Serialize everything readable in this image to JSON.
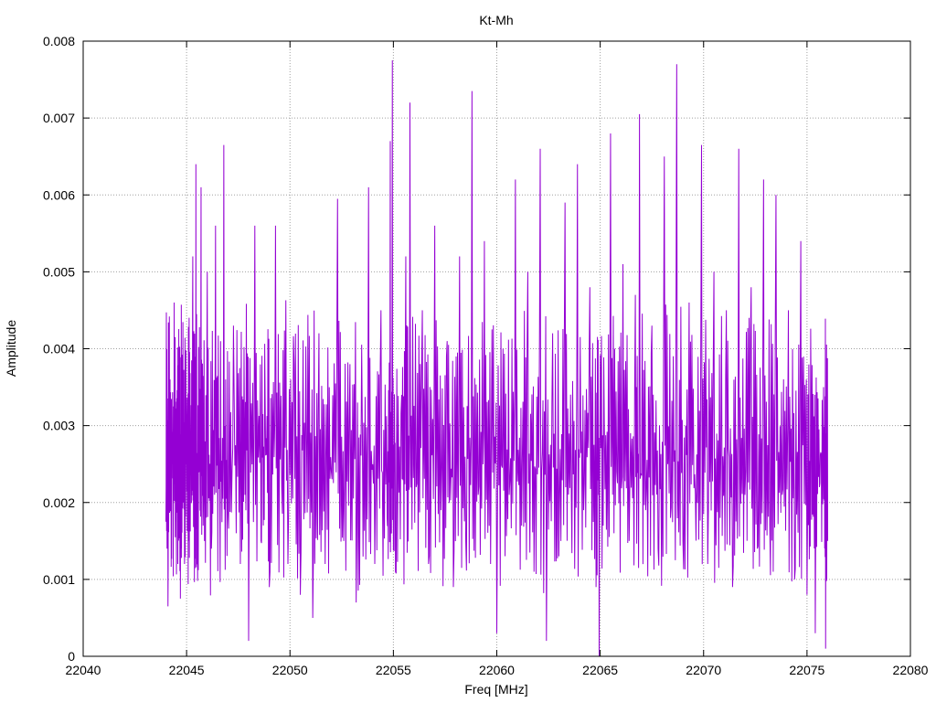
{
  "chart_data": {
    "type": "line",
    "title": "Kt-Mh",
    "xlabel": "Freq [MHz]",
    "ylabel": "Amplitude",
    "xlim": [
      22040,
      22080
    ],
    "ylim": [
      0,
      0.008
    ],
    "x_ticks": [
      "22040",
      "22045",
      "22050",
      "22055",
      "22060",
      "22065",
      "22070",
      "22075",
      "22080"
    ],
    "y_ticks": [
      "0",
      "0.001",
      "0.002",
      "0.003",
      "0.004",
      "0.005",
      "0.006",
      "0.007",
      "0.008"
    ],
    "grid": true,
    "legend": "none",
    "series": [
      {
        "color": "#9400d3",
        "x_start": 22044.0,
        "x_end": 22076.0,
        "points": [
          [
            22044.0,
            0.00175
          ],
          [
            22044.1,
            0.00065
          ],
          [
            22044.2,
            0.0036
          ],
          [
            22044.3,
            0.0025
          ],
          [
            22044.4,
            0.0046
          ],
          [
            22044.5,
            0.0019
          ],
          [
            22044.6,
            0.0033
          ],
          [
            22044.7,
            0.00075
          ],
          [
            22044.8,
            0.0039
          ],
          [
            22044.9,
            0.0012
          ],
          [
            22045.0,
            0.0031
          ],
          [
            22045.1,
            0.0015
          ],
          [
            22045.2,
            0.0029
          ],
          [
            22045.3,
            0.0052
          ],
          [
            22045.4,
            0.0021
          ],
          [
            22045.45,
            0.0064
          ],
          [
            22045.6,
            0.0024
          ],
          [
            22045.7,
            0.0061
          ],
          [
            22045.8,
            0.0017
          ],
          [
            22046.0,
            0.005
          ],
          [
            22046.2,
            0.0014
          ],
          [
            22046.4,
            0.0056
          ],
          [
            22046.6,
            0.0022
          ],
          [
            22046.8,
            0.00665
          ],
          [
            22047.0,
            0.0019
          ],
          [
            22047.3,
            0.0034
          ],
          [
            22047.6,
            0.0012
          ],
          [
            22047.8,
            0.0029
          ],
          [
            22048.0,
            0.0002
          ],
          [
            22048.3,
            0.0056
          ],
          [
            22048.6,
            0.0015
          ],
          [
            22048.8,
            0.0033
          ],
          [
            22049.0,
            0.0009
          ],
          [
            22049.3,
            0.0056
          ],
          [
            22049.6,
            0.0022
          ],
          [
            22049.9,
            0.0012
          ],
          [
            22050.2,
            0.0038
          ],
          [
            22050.5,
            0.0008
          ],
          [
            22050.8,
            0.0028
          ],
          [
            22051.1,
            0.0005
          ],
          [
            22051.4,
            0.0042
          ],
          [
            22051.7,
            0.0012
          ],
          [
            22052.0,
            0.0024
          ],
          [
            22052.3,
            0.00595
          ],
          [
            22052.6,
            0.0015
          ],
          [
            22052.9,
            0.0038
          ],
          [
            22053.2,
            0.0007
          ],
          [
            22053.5,
            0.0029
          ],
          [
            22053.8,
            0.0061
          ],
          [
            22054.1,
            0.0012
          ],
          [
            22054.4,
            0.0045
          ],
          [
            22054.7,
            0.0018
          ],
          [
            22054.85,
            0.0067
          ],
          [
            22054.95,
            0.00775
          ],
          [
            22055.1,
            0.0011
          ],
          [
            22055.4,
            0.0034
          ],
          [
            22055.6,
            0.0052
          ],
          [
            22055.8,
            0.0072
          ],
          [
            22056.1,
            0.0022
          ],
          [
            22056.4,
            0.0045
          ],
          [
            22056.7,
            0.0012
          ],
          [
            22057.0,
            0.0056
          ],
          [
            22057.3,
            0.0019
          ],
          [
            22057.6,
            0.0041
          ],
          [
            22057.9,
            0.0009
          ],
          [
            22058.2,
            0.0052
          ],
          [
            22058.5,
            0.0015
          ],
          [
            22058.8,
            0.00735
          ],
          [
            22059.1,
            0.0021
          ],
          [
            22059.4,
            0.0054
          ],
          [
            22059.7,
            0.0012
          ],
          [
            22060.0,
            0.0003
          ],
          [
            22060.3,
            0.004
          ],
          [
            22060.6,
            0.0021
          ],
          [
            22060.9,
            0.0062
          ],
          [
            22061.2,
            0.0017
          ],
          [
            22061.5,
            0.005
          ],
          [
            22061.8,
            0.0011
          ],
          [
            22062.1,
            0.0066
          ],
          [
            22062.4,
            0.0002
          ],
          [
            22062.7,
            0.0042
          ],
          [
            22063.0,
            0.0013
          ],
          [
            22063.3,
            0.0059
          ],
          [
            22063.6,
            0.0022
          ],
          [
            22063.9,
            0.0064
          ],
          [
            22064.2,
            0.0019
          ],
          [
            22064.5,
            0.0048
          ],
          [
            22064.8,
            0.0009
          ],
          [
            22064.95,
            0.0
          ],
          [
            22065.2,
            0.003
          ],
          [
            22065.5,
            0.0068
          ],
          [
            22065.8,
            0.0024
          ],
          [
            22066.1,
            0.0051
          ],
          [
            22066.4,
            0.0015
          ],
          [
            22066.7,
            0.0047
          ],
          [
            22066.9,
            0.00705
          ],
          [
            22067.2,
            0.0019
          ],
          [
            22067.5,
            0.0043
          ],
          [
            22067.8,
            0.0014
          ],
          [
            22068.1,
            0.0065
          ],
          [
            22068.4,
            0.0018
          ],
          [
            22068.7,
            0.0077
          ],
          [
            22069.0,
            0.0015
          ],
          [
            22069.3,
            0.0046
          ],
          [
            22069.6,
            0.0021
          ],
          [
            22069.9,
            0.00665
          ],
          [
            22070.2,
            0.0012
          ],
          [
            22070.5,
            0.005
          ],
          [
            22070.8,
            0.0018
          ],
          [
            22071.1,
            0.0045
          ],
          [
            22071.4,
            0.0009
          ],
          [
            22071.7,
            0.0066
          ],
          [
            22072.0,
            0.0021
          ],
          [
            22072.3,
            0.0048
          ],
          [
            22072.6,
            0.0014
          ],
          [
            22072.9,
            0.0062
          ],
          [
            22073.2,
            0.0017
          ],
          [
            22073.5,
            0.006
          ],
          [
            22073.8,
            0.0021
          ],
          [
            22074.1,
            0.0045
          ],
          [
            22074.4,
            0.001
          ],
          [
            22074.7,
            0.0054
          ],
          [
            22075.0,
            0.0008
          ],
          [
            22075.2,
            0.0032
          ],
          [
            22075.4,
            0.0003
          ],
          [
            22075.6,
            0.0022
          ],
          [
            22075.8,
            0.0035
          ],
          [
            22075.9,
            0.0001
          ],
          [
            22076.0,
            0.0015
          ]
        ]
      }
    ]
  }
}
